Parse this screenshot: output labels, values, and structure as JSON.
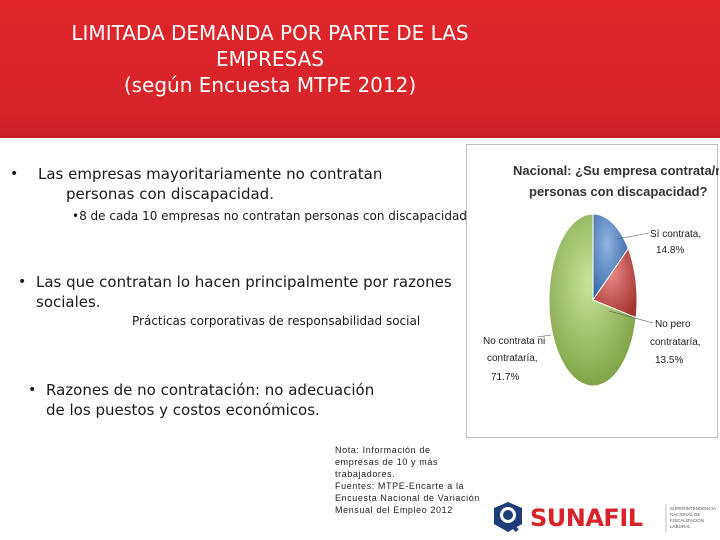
{
  "header": {
    "title_lines": [
      "LIMITADA DEMANDA POR PARTE DE LAS",
      "EMPRESAS",
      "(según Encuesta MTPE 2012)"
    ]
  },
  "content": {
    "bullet_1": "Las empresas mayoritariamente no contratan",
    "bullet_1b": "personas con discapacidad.",
    "sub_1": "•8 de cada 10 empresas no contratan personas con discapacidad",
    "bullet_2": "Las que contratan lo hacen principalmente por razones",
    "bullet_2b": "sociales.",
    "sub_2": "Prácticas corporativas de responsabilidad social",
    "bullet_3": "Razones de no contratación: no adecuación",
    "bullet_3b": "de los puestos y costos económicos.",
    "bullet_symbol": "•"
  },
  "chart_data": {
    "type": "pie",
    "title": "Nacional: ¿Su empresa contrata/ría personas con discapacidad?",
    "title_lines": [
      "Nacional: ¿Su empresa contrata/ría",
      "personas con discapacidad?"
    ],
    "slices": [
      {
        "label": "Sí contrata,",
        "value": 14.8,
        "value_label": "14.8%",
        "color": "#4f81bd"
      },
      {
        "label": "No pero contrataría,",
        "value": 13.5,
        "value_label": "13.5%",
        "color": "#c0504d"
      },
      {
        "label": "No contrata ni contrataría,",
        "value": 71.7,
        "value_label": "71.7%",
        "color": "#9bbb59"
      }
    ],
    "label_lines": {
      "si": [
        "Sí contrata,",
        "14.8%"
      ],
      "no_pero": [
        "No pero",
        "contrataría,",
        "13.5%"
      ],
      "no": [
        "No contrata ni",
        "contrataría,",
        "71.7%"
      ]
    }
  },
  "note": {
    "lines": [
      "Nota: Información de",
      "empresas de 10 y más",
      "trabajadores.",
      "Fuentes: MTPE-Encarte a la",
      "Encuesta Nacional de Variación",
      "Mensual del Empleo 2012"
    ]
  },
  "logo": {
    "name": "SUNAFIL",
    "subtitle_lines": [
      "SUPERINTENDENCIA",
      "NACIONAL DE",
      "FISCALIZACIÓN",
      "LABORAL"
    ],
    "color_red": "#d8232a",
    "color_blue": "#1f3d7a"
  }
}
